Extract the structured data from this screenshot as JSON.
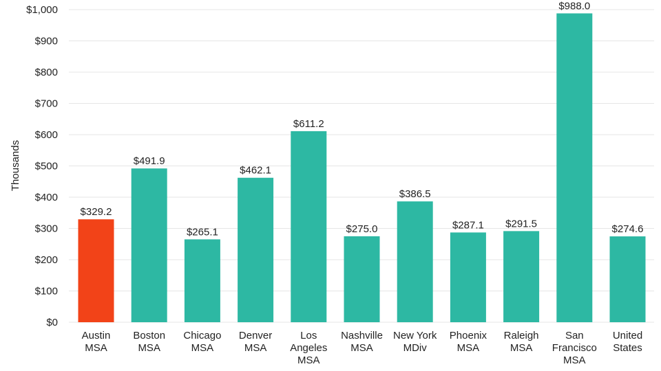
{
  "chart_data": {
    "type": "bar",
    "title": "",
    "xlabel": "",
    "ylabel": "Thousands",
    "ylim": [
      0,
      1000
    ],
    "yticks": [
      0,
      100,
      200,
      300,
      400,
      500,
      600,
      700,
      800,
      900,
      1000
    ],
    "ytick_labels": [
      "$0",
      "$100",
      "$200",
      "$300",
      "$400",
      "$500",
      "$600",
      "$700",
      "$800",
      "$900",
      "$1,000"
    ],
    "grid": true,
    "legend": "none",
    "categories": [
      [
        "Austin",
        "MSA"
      ],
      [
        "Boston",
        "MSA"
      ],
      [
        "Chicago",
        "MSA"
      ],
      [
        "Denver",
        "MSA"
      ],
      [
        "Los",
        "Angeles",
        "MSA"
      ],
      [
        "Nashville",
        "MSA"
      ],
      [
        "New York",
        "MDiv"
      ],
      [
        "Phoenix",
        "MSA"
      ],
      [
        "Raleigh",
        "MSA"
      ],
      [
        "San",
        "Francisco",
        "MSA"
      ],
      [
        "United",
        "States"
      ]
    ],
    "values": [
      329.2,
      491.9,
      265.1,
      462.1,
      611.2,
      275.0,
      386.5,
      287.1,
      291.5,
      988.0,
      274.6
    ],
    "data_labels": [
      "$329.2",
      "$491.9",
      "$265.1",
      "$462.1",
      "$611.2",
      "$275.0",
      "$386.5",
      "$287.1",
      "$291.5",
      "$988.0",
      "$274.6"
    ],
    "highlight_index": 0,
    "colors": {
      "highlight": "#f24318",
      "default": "#2db8a3",
      "grid": "#e6e6e6",
      "text": "#222222"
    }
  }
}
